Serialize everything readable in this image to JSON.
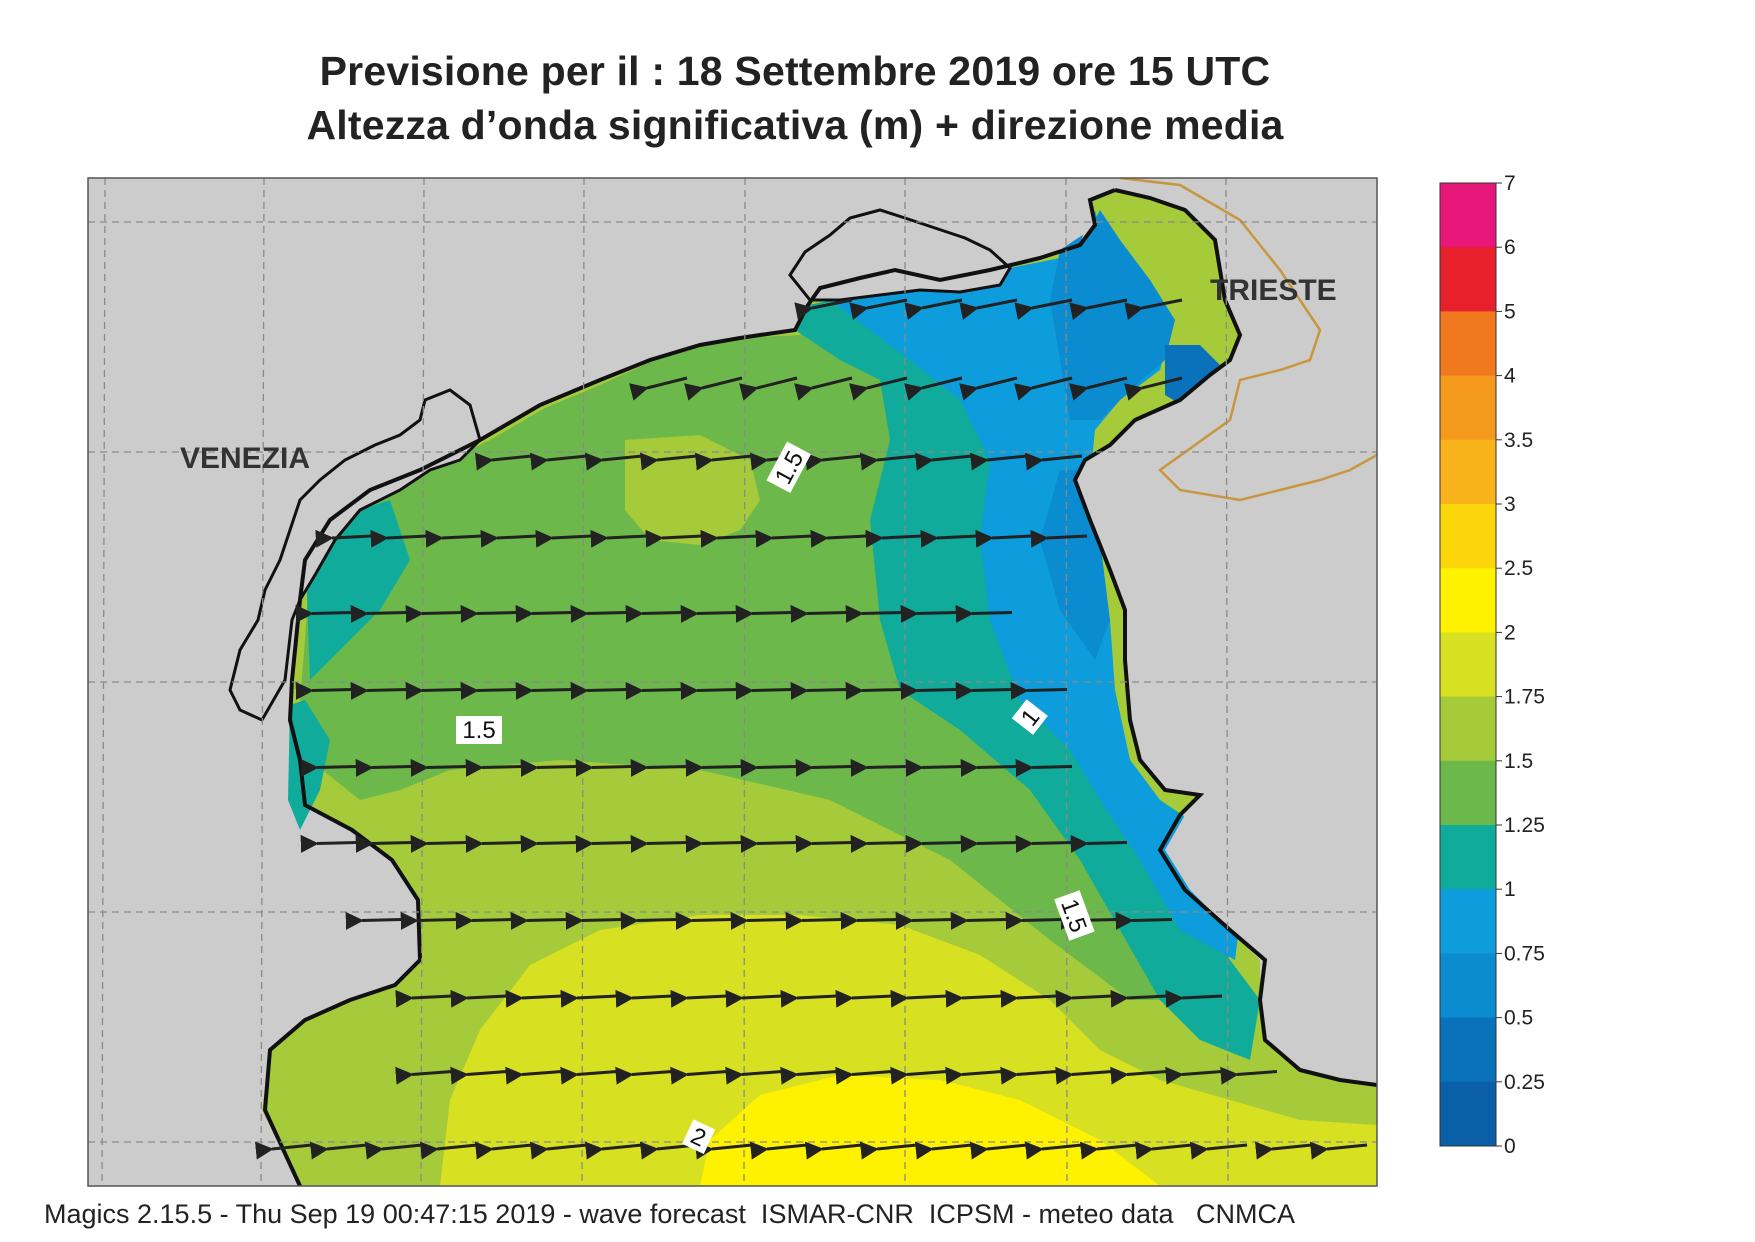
{
  "header": {
    "title_line1": "Previsione per il  :  18 Settembre 2019   ore 15 UTC",
    "title_line2": "Altezza d’onda significativa (m) + direzione media"
  },
  "map": {
    "places": {
      "venezia": "VENEZIA",
      "trieste": "TRIESTE"
    },
    "contour_labels": {
      "north": "1.5",
      "west": "1.5",
      "east_one": "1",
      "east_onefive": "1.5",
      "south_two": "2"
    },
    "colors": {
      "land": "#cccccc",
      "grid": "#8a8a8a",
      "coast": "#111111",
      "border": "#c8963c"
    },
    "wave_direction": "toward west (arrows pointing left, slightly west-southwest near Trieste)"
  },
  "legend": {
    "unit": "m",
    "ticks": [
      "7",
      "6",
      "5",
      "4",
      "3.5",
      "3",
      "2.5",
      "2",
      "1.75",
      "1.5",
      "1.25",
      "1",
      "0.75",
      "0.5",
      "0.25",
      "0"
    ],
    "colors": [
      "#e8177a",
      "#e8202b",
      "#f0781e",
      "#f59a1c",
      "#f8b31b",
      "#fad50a",
      "#fef200",
      "#d7e021",
      "#a5cb3a",
      "#6db84a",
      "#10ab9b",
      "#0d9cdc",
      "#0b8bd0",
      "#0a72bb",
      "#0a5fa8"
    ]
  },
  "footer": {
    "credit": "Magics 2.15.5 - Thu Sep 19 00:47:15 2019 - wave forecast  ISMAR-CNR  ICPSM - meteo data   CNMCA"
  }
}
